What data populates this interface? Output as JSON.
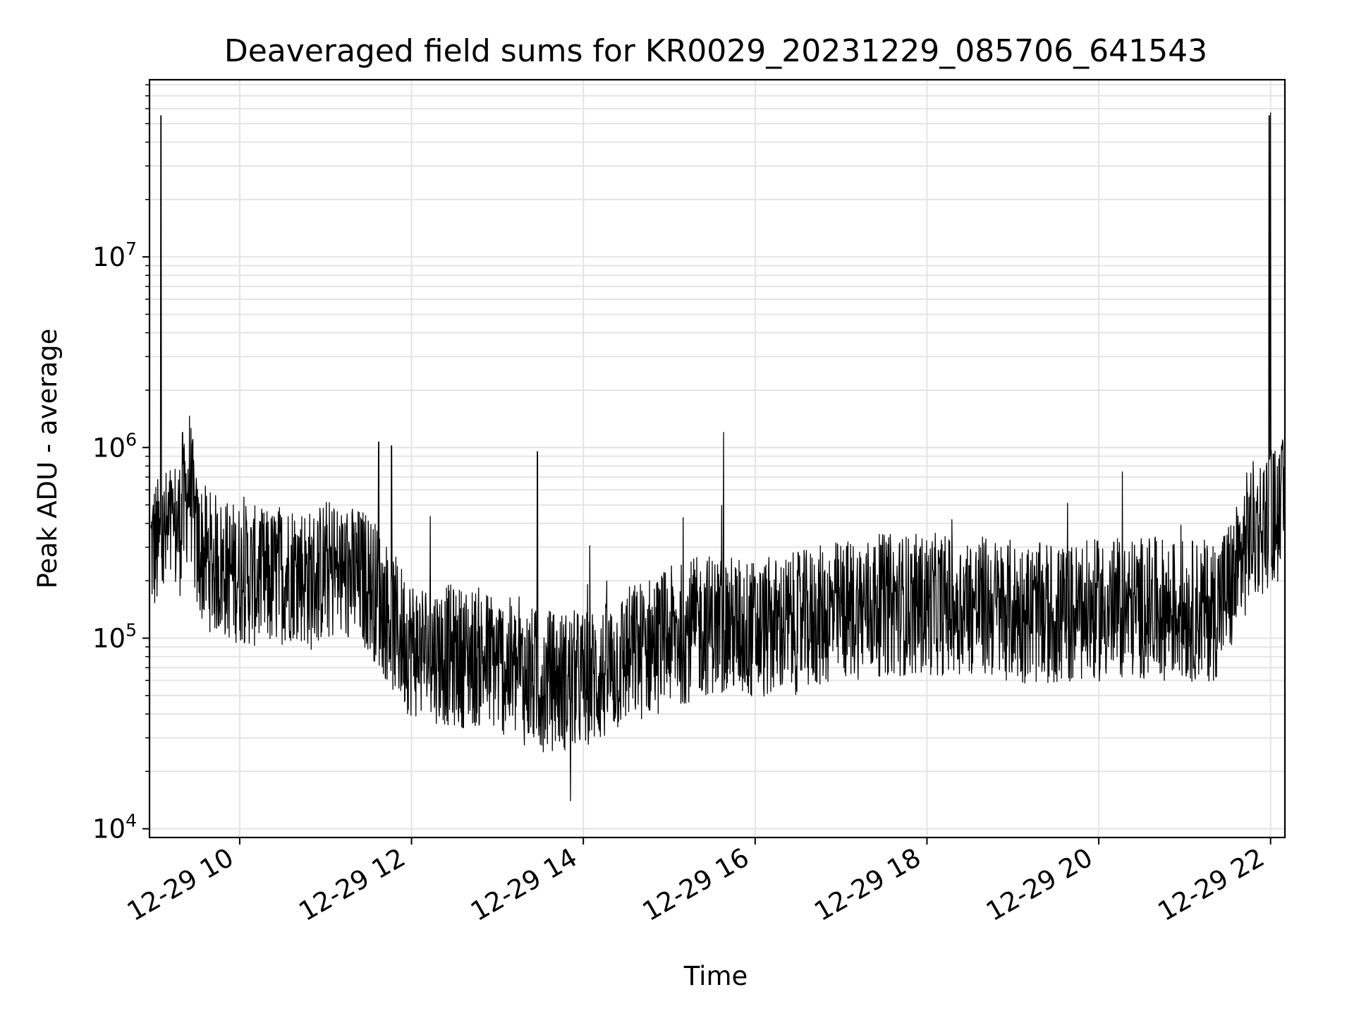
{
  "chart_data": {
    "type": "line",
    "title": "Deaveraged field sums for KR0029_20231229_085706_641543",
    "xlabel": "Time",
    "ylabel": "Peak ADU - average",
    "xscale": "time",
    "yscale": "log",
    "xlim": [
      "2023-12-29 08:57",
      "2023-12-29 22:10"
    ],
    "ylim": [
      9000,
      85000000
    ],
    "grid": true,
    "line_color": "#000000",
    "x_ticks": [
      {
        "value": "2023-12-29 10:00",
        "label": "12-29 10"
      },
      {
        "value": "2023-12-29 12:00",
        "label": "12-29 12"
      },
      {
        "value": "2023-12-29 14:00",
        "label": "12-29 14"
      },
      {
        "value": "2023-12-29 16:00",
        "label": "12-29 16"
      },
      {
        "value": "2023-12-29 18:00",
        "label": "12-29 18"
      },
      {
        "value": "2023-12-29 20:00",
        "label": "12-29 20"
      },
      {
        "value": "2023-12-29 22:00",
        "label": "12-29 22"
      }
    ],
    "y_ticks": [
      {
        "value": 10000,
        "base": "10",
        "exp": "4"
      },
      {
        "value": 100000,
        "base": "10",
        "exp": "5"
      },
      {
        "value": 1000000,
        "base": "10",
        "exp": "6"
      },
      {
        "value": 10000000,
        "base": "10",
        "exp": "7"
      }
    ],
    "series": [
      {
        "x": [
          "2023-12-29 08:58",
          "2023-12-29 09:05",
          "2023-12-29 09:10",
          "2023-12-29 09:20",
          "2023-12-29 09:25",
          "2023-12-29 09:30",
          "2023-12-29 09:40",
          "2023-12-29 09:50",
          "2023-12-29 10:00",
          "2023-12-29 10:10",
          "2023-12-29 10:20",
          "2023-12-29 10:30",
          "2023-12-29 10:40",
          "2023-12-29 10:50",
          "2023-12-29 11:00",
          "2023-12-29 11:10",
          "2023-12-29 11:20",
          "2023-12-29 11:30",
          "2023-12-29 11:40",
          "2023-12-29 11:50",
          "2023-12-29 12:00",
          "2023-12-29 12:15",
          "2023-12-29 12:30",
          "2023-12-29 12:45",
          "2023-12-29 13:00",
          "2023-12-29 13:15",
          "2023-12-29 13:30",
          "2023-12-29 13:45",
          "2023-12-29 14:00",
          "2023-12-29 14:15",
          "2023-12-29 14:30",
          "2023-12-29 14:45",
          "2023-12-29 15:00",
          "2023-12-29 15:15",
          "2023-12-29 15:30",
          "2023-12-29 15:45",
          "2023-12-29 16:00",
          "2023-12-29 16:30",
          "2023-12-29 17:00",
          "2023-12-29 17:30",
          "2023-12-29 18:00",
          "2023-12-29 18:30",
          "2023-12-29 19:00",
          "2023-12-29 19:30",
          "2023-12-29 20:00",
          "2023-12-29 20:30",
          "2023-12-29 21:00",
          "2023-12-29 21:20",
          "2023-12-29 21:35",
          "2023-12-29 21:45",
          "2023-12-29 21:55",
          "2023-12-29 22:05",
          "2023-12-29 22:10"
        ],
        "y": [
          300000,
          300000,
          350000,
          400000,
          700000,
          300000,
          250000,
          230000,
          220000,
          210000,
          200000,
          220000,
          230000,
          200000,
          230000,
          220000,
          210000,
          200000,
          150000,
          110000,
          90000,
          85000,
          80000,
          80000,
          75000,
          65000,
          60000,
          60000,
          60000,
          65000,
          80000,
          90000,
          100000,
          110000,
          120000,
          115000,
          110000,
          120000,
          140000,
          150000,
          150000,
          150000,
          140000,
          130000,
          140000,
          145000,
          140000,
          140000,
          200000,
          350000,
          400000,
          450000,
          480000
        ]
      }
    ],
    "annotations_spikes": [
      {
        "x": "2023-12-29 09:05",
        "y": 55000000
      },
      {
        "x": "2023-12-29 21:59",
        "y": 55000000
      },
      {
        "x": "2023-12-29 22:00",
        "y": 57000000
      },
      {
        "x": "2023-12-29 09:20",
        "y": 1200000
      },
      {
        "x": "2023-12-29 11:37",
        "y": 1070000
      },
      {
        "x": "2023-12-29 11:46",
        "y": 1020000
      },
      {
        "x": "2023-12-29 13:28",
        "y": 950000
      },
      {
        "x": "2023-12-29 15:38",
        "y": 1200000
      },
      {
        "x": "2023-12-29 13:51",
        "y": 14000
      }
    ]
  }
}
